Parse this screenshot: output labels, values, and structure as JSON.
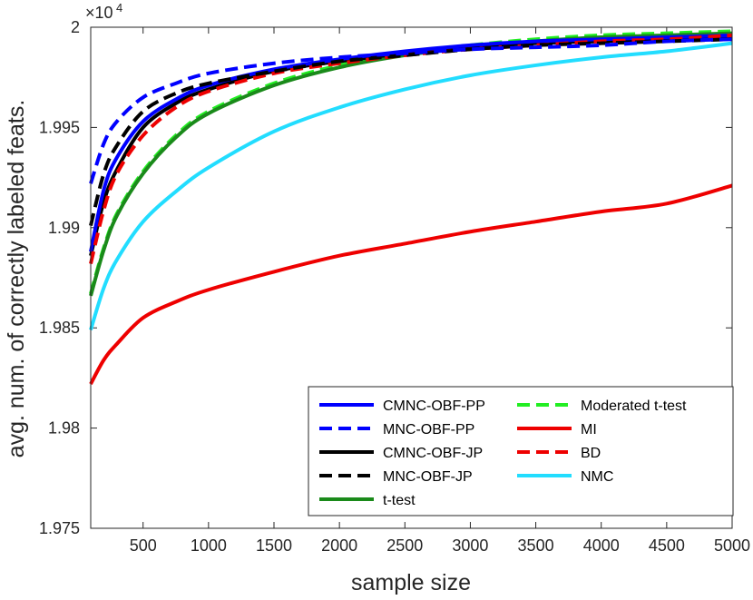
{
  "chart_data": {
    "type": "line",
    "title": "",
    "xlabel": "sample size",
    "ylabel": "avg. num. of correctly labeled feats.",
    "xlim": [
      100,
      5000
    ],
    "ylim": [
      19750,
      20000
    ],
    "y_scale_label": "×10",
    "y_scale_exponent": "4",
    "x_ticks": [
      500,
      1000,
      1500,
      2000,
      2500,
      3000,
      3500,
      4000,
      4500,
      5000
    ],
    "x_tick_labels": [
      "500",
      "1000",
      "1500",
      "2000",
      "2500",
      "3000",
      "3500",
      "4000",
      "4500",
      "5000"
    ],
    "y_ticks": [
      19750,
      19800,
      19850,
      19900,
      19950,
      20000
    ],
    "y_tick_labels": [
      "1.975",
      "1.98",
      "1.985",
      "1.99",
      "1.995",
      "2"
    ],
    "legend": {
      "location": "bottom-right",
      "columns": 2
    },
    "x": [
      100,
      200,
      300,
      500,
      750,
      1000,
      1500,
      2000,
      2500,
      3000,
      3500,
      4000,
      4500,
      5000
    ],
    "series": [
      {
        "name": "CMNC-OBF-PP",
        "color": "#0000ff",
        "dash": "solid",
        "values": [
          19888,
          19919,
          19935,
          19953,
          19964,
          19971,
          19979,
          19984,
          19988,
          19991,
          19993,
          19994,
          19995,
          19996
        ]
      },
      {
        "name": "Moderated t-test",
        "color": "#22ee22",
        "dash": "dashed",
        "values": [
          19867,
          19890,
          19907,
          19928,
          19946,
          19958,
          19972,
          19981,
          19987,
          19991,
          19994,
          19996,
          19997,
          19998
        ]
      },
      {
        "name": "MNC-OBF-PP",
        "color": "#0000ff",
        "dash": "dashed",
        "values": [
          19922,
          19942,
          19953,
          19965,
          19972,
          19977,
          19982,
          19985,
          19987,
          19989,
          19990,
          19991,
          19993,
          19994
        ]
      },
      {
        "name": "MI",
        "color": "#ee0000",
        "dash": "solid",
        "values": [
          19822,
          19834,
          19842,
          19855,
          19863,
          19869,
          19878,
          19886,
          19892,
          19898,
          19903,
          19908,
          19912,
          19921
        ]
      },
      {
        "name": "CMNC-OBF-JP",
        "color": "#000000",
        "dash": "solid",
        "values": [
          19886,
          19913,
          19929,
          19950,
          19962,
          19969,
          19978,
          19983,
          19987,
          19990,
          19992,
          19993,
          19994,
          19995
        ]
      },
      {
        "name": "BD",
        "color": "#ee0000",
        "dash": "dashed",
        "values": [
          19882,
          19909,
          19927,
          19946,
          19960,
          19968,
          19977,
          19982,
          19986,
          19989,
          19991,
          19993,
          19994,
          19996
        ]
      },
      {
        "name": "MNC-OBF-JP",
        "color": "#000000",
        "dash": "dashed",
        "values": [
          19901,
          19927,
          19941,
          19958,
          19967,
          19972,
          19978,
          19983,
          19986,
          19989,
          19991,
          19992,
          19993,
          19994
        ]
      },
      {
        "name": "NMC",
        "color": "#22ddff",
        "dash": "solid",
        "values": [
          19849,
          19870,
          19884,
          19903,
          19918,
          19930,
          19948,
          19960,
          19969,
          19976,
          19981,
          19985,
          19988,
          19992
        ]
      },
      {
        "name": "t-test",
        "color": "#1a8a1a",
        "dash": "solid",
        "values": [
          19866,
          19889,
          19906,
          19927,
          19945,
          19957,
          19971,
          19980,
          19986,
          19990,
          19993,
          19995,
          19996,
          19997
        ]
      }
    ]
  }
}
